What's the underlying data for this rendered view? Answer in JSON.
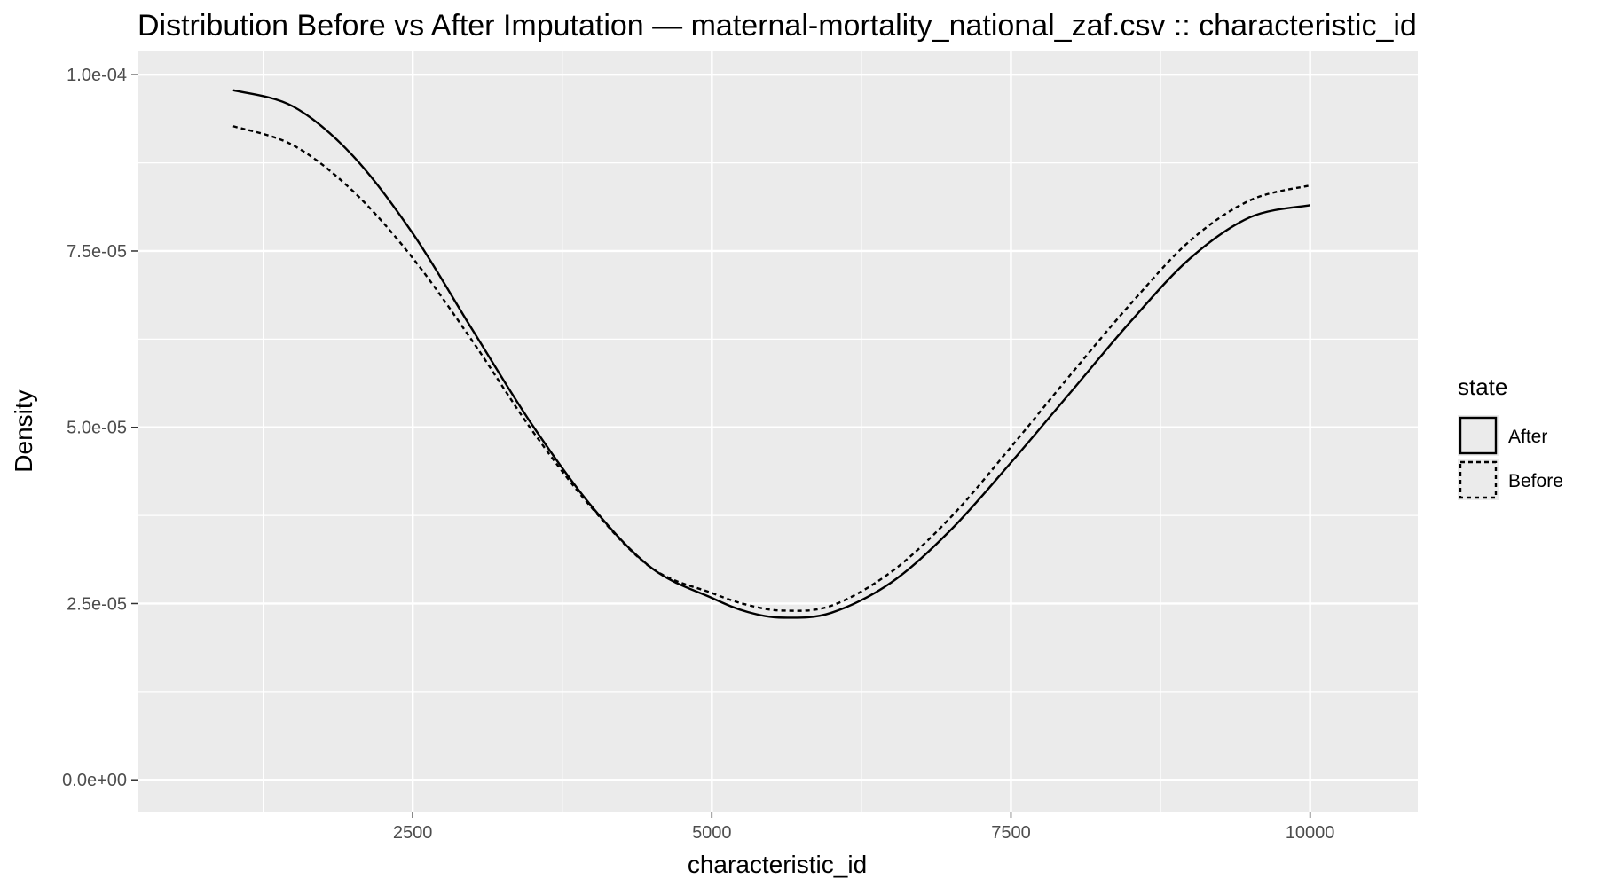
{
  "chart_data": {
    "type": "line",
    "title": "Distribution Before vs After Imputation — maternal-mortality_national_zaf.csv :: characteristic_id",
    "xlabel": "characteristic_id",
    "ylabel": "Density",
    "xlim": [
      200,
      10900
    ],
    "ylim": [
      -4.5e-06,
      0.0001033
    ],
    "x_ticks": [
      2500,
      5000,
      7500,
      10000
    ],
    "x_tick_labels": [
      "2500",
      "5000",
      "7500",
      "10000"
    ],
    "x_minor_ticks": [
      1250,
      3750,
      6250,
      8750
    ],
    "y_ticks": [
      0,
      2.5e-05,
      5e-05,
      7.5e-05,
      0.0001
    ],
    "y_tick_labels": [
      "0.0e+00",
      "2.5e-05",
      "5.0e-05",
      "7.5e-05",
      "1.0e-04"
    ],
    "y_minor_ticks": [
      1.25e-05,
      3.75e-05,
      6.25e-05,
      8.75e-05
    ],
    "grid": true,
    "background_color": "#ebebeb",
    "grid_color": "#ffffff",
    "legend_position": "right",
    "legend_title": "state",
    "series": [
      {
        "name": "After",
        "line_style": "solid",
        "color": "#000000",
        "x": [
          1000,
          1500,
          2000,
          2500,
          3000,
          3500,
          4000,
          4500,
          5000,
          5300,
          5600,
          6000,
          6500,
          7000,
          7500,
          8000,
          8500,
          9000,
          9500,
          10000
        ],
        "values": [
          9.78e-05,
          9.55e-05,
          8.85e-05,
          7.75e-05,
          6.38e-05,
          5.03e-05,
          3.87e-05,
          3e-05,
          2.58e-05,
          2.38e-05,
          2.3e-05,
          2.37e-05,
          2.8e-05,
          3.55e-05,
          4.5e-05,
          5.5e-05,
          6.5e-05,
          7.4e-05,
          7.98e-05,
          8.15e-05
        ]
      },
      {
        "name": "Before",
        "line_style": "dashed",
        "color": "#000000",
        "x": [
          1000,
          1500,
          2000,
          2500,
          3000,
          3500,
          4000,
          4500,
          5000,
          5300,
          5600,
          6000,
          6500,
          7000,
          7500,
          8000,
          8500,
          9000,
          9500,
          10000
        ],
        "values": [
          9.27e-05,
          9e-05,
          8.35e-05,
          7.4e-05,
          6.22e-05,
          4.95e-05,
          3.85e-05,
          3e-05,
          2.65e-05,
          2.48e-05,
          2.4e-05,
          2.47e-05,
          2.95e-05,
          3.73e-05,
          4.72e-05,
          5.75e-05,
          6.75e-05,
          7.65e-05,
          8.22e-05,
          8.43e-05
        ]
      }
    ]
  }
}
